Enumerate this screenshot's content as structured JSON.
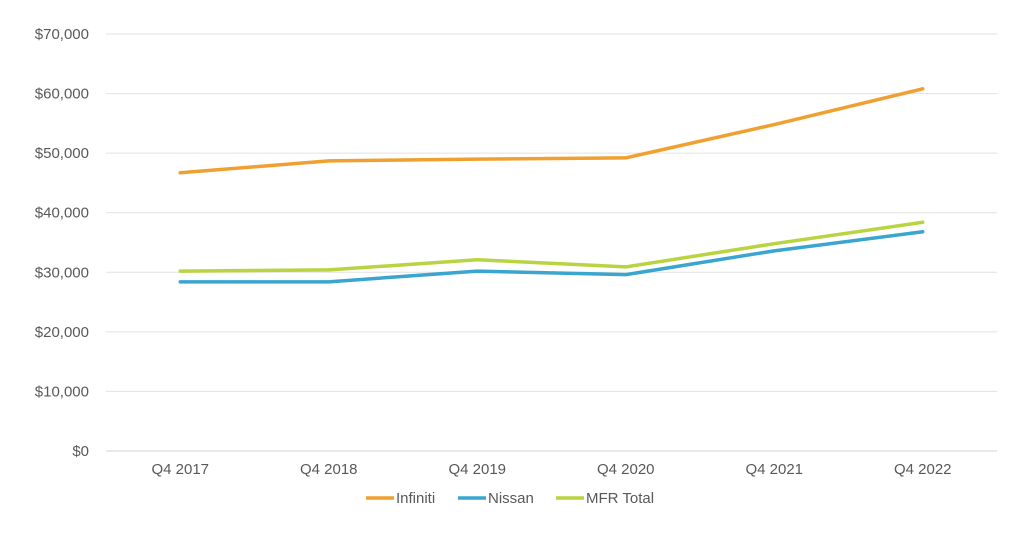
{
  "chart_data": {
    "type": "line",
    "title": "",
    "xlabel": "",
    "ylabel": "",
    "categories": [
      "Q4 2017",
      "Q4 2018",
      "Q4 2019",
      "Q4 2020",
      "Q4 2021",
      "Q4 2022"
    ],
    "ylim": [
      0,
      70000
    ],
    "yticks": [
      0,
      10000,
      20000,
      30000,
      40000,
      50000,
      60000,
      70000
    ],
    "ytick_labels": [
      "$0",
      "$10,000",
      "$20,000",
      "$30,000",
      "$40,000",
      "$50,000",
      "$60,000",
      "$70,000"
    ],
    "grid": "horizontal",
    "legend_position": "bottom",
    "series": [
      {
        "name": "Infiniti",
        "color": "#F0A030",
        "values": [
          46700,
          48700,
          49000,
          49200,
          54800,
          60800
        ]
      },
      {
        "name": "Nissan",
        "color": "#3AA6D0",
        "values": [
          28400,
          28400,
          30200,
          29600,
          33600,
          36800
        ]
      },
      {
        "name": "MFR Total",
        "color": "#B8D440",
        "values": [
          30200,
          30400,
          32100,
          30900,
          34800,
          38400
        ]
      }
    ]
  }
}
